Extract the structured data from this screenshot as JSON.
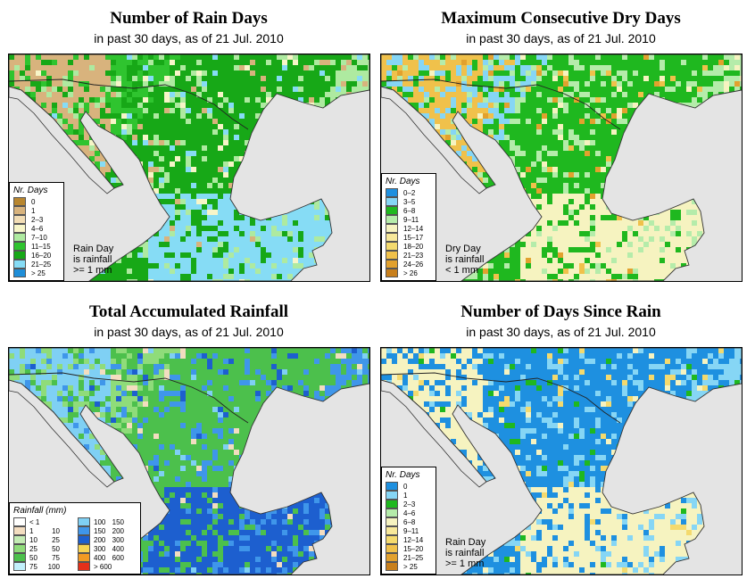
{
  "panels": [
    {
      "title": "Number of Rain Days",
      "subtitle": "in past 30 days, as of  21 Jul. 2010",
      "legend_title": "Nr. Days",
      "legend": [
        {
          "label": "0",
          "color": "#b8862f"
        },
        {
          "label": "1",
          "color": "#d8b37d"
        },
        {
          "label": "2–3",
          "color": "#f2ddb5"
        },
        {
          "label": "4–6",
          "color": "#f7f5c8"
        },
        {
          "label": "7–10",
          "color": "#aeeaa0"
        },
        {
          "label": "11–15",
          "color": "#2fc42f"
        },
        {
          "label": "16–20",
          "color": "#17a817"
        },
        {
          "label": "21–25",
          "color": "#86dcf5"
        },
        {
          "label": "> 25",
          "color": "#1f8ed8"
        }
      ],
      "note": [
        "Rain Day",
        "is rainfall",
        ">= 1 mm"
      ],
      "palette": [
        "#2fc42f",
        "#17a817",
        "#aeeaa0",
        "#86dcf5",
        "#d8b37d",
        "#f7f5c8"
      ]
    },
    {
      "title": "Maximum Consecutive Dry Days",
      "subtitle": "in past 30 days, as of  21 Jul. 2010",
      "legend_title": "Nr. Days",
      "legend": [
        {
          "label": "0–2",
          "color": "#1e90e0"
        },
        {
          "label": "3–5",
          "color": "#86d6f5"
        },
        {
          "label": "6–8",
          "color": "#1fb81f"
        },
        {
          "label": "9–11",
          "color": "#b5ecaa"
        },
        {
          "label": "12–14",
          "color": "#f6f3c0"
        },
        {
          "label": "15–17",
          "color": "#f7e89a"
        },
        {
          "label": "18–20",
          "color": "#f4da6e"
        },
        {
          "label": "21–23",
          "color": "#f0c14b"
        },
        {
          "label": "24–26",
          "color": "#e2a12e"
        },
        {
          "label": "> 26",
          "color": "#c87f1c"
        }
      ],
      "note": [
        "Dry Day",
        "is rainfall",
        "< 1 mm"
      ],
      "palette": [
        "#86d6f5",
        "#1fb81f",
        "#b5ecaa",
        "#f6f3c0",
        "#f0c14b",
        "#e2a12e"
      ]
    },
    {
      "title": "Total Accumulated Rainfall",
      "subtitle": "in past 30 days, as of  21 Jul. 2010",
      "legend_title": "Rainfall (mm)",
      "legend": [
        {
          "low": "< 1",
          "high": "",
          "color": "#ffffff"
        },
        {
          "low": "1",
          "high": "10",
          "color": "#f3ddc0"
        },
        {
          "low": "10",
          "high": "25",
          "color": "#c4ecb4"
        },
        {
          "low": "25",
          "high": "50",
          "color": "#8fdc7a"
        },
        {
          "low": "50",
          "high": "75",
          "color": "#4cc04c"
        },
        {
          "low": "75",
          "high": "100",
          "color": "#c2f0fb"
        },
        {
          "low": "100",
          "high": "150",
          "color": "#7fd0f4"
        },
        {
          "low": "150",
          "high": "200",
          "color": "#3f96ea"
        },
        {
          "low": "200",
          "high": "300",
          "color": "#1d5fcf"
        },
        {
          "low": "300",
          "high": "400",
          "color": "#f7d452"
        },
        {
          "low": "400",
          "high": "600",
          "color": "#f29a23"
        },
        {
          "low": "> 600",
          "high": "",
          "color": "#e6301a"
        }
      ],
      "note": [],
      "palette": [
        "#8fdc7a",
        "#4cc04c",
        "#3f96ea",
        "#1d5fcf",
        "#7fd0f4",
        "#f3ddc0"
      ]
    },
    {
      "title": "Number of Days Since Rain",
      "subtitle": "in past 30 days, as of  21 Jul. 2010",
      "legend_title": "Nr. Days",
      "legend": [
        {
          "label": "0",
          "color": "#1e90e0"
        },
        {
          "label": "1",
          "color": "#86d6f5"
        },
        {
          "label": "2–3",
          "color": "#1fb81f"
        },
        {
          "label": "4–6",
          "color": "#b5ecaa"
        },
        {
          "label": "6–8",
          "color": "#f6f3c0"
        },
        {
          "label": "9–11",
          "color": "#f7e89a"
        },
        {
          "label": "12–14",
          "color": "#f4da6e"
        },
        {
          "label": "15–20",
          "color": "#f0c14b"
        },
        {
          "label": "21–25",
          "color": "#e2a12e"
        },
        {
          "label": "> 25",
          "color": "#c87f1c"
        }
      ],
      "note": [
        "Rain Day",
        "is rainfall",
        ">= 1 mm"
      ],
      "palette": [
        "#1e90e0",
        "#1e90e0",
        "#86d6f5",
        "#f6f3c0",
        "#f4da6e",
        "#1fb81f"
      ]
    }
  ]
}
